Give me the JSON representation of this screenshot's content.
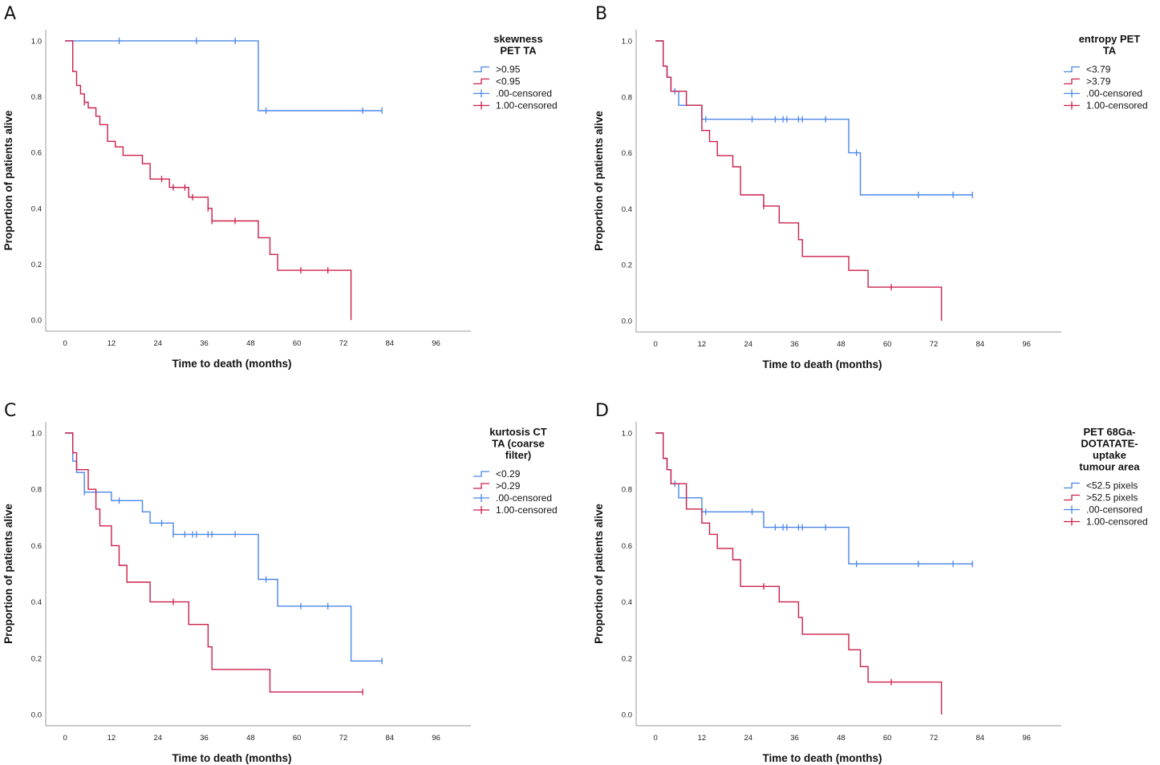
{
  "colors": {
    "group1": "#4a86e8",
    "group2": "#cc1f4a",
    "axis": "#9a9a9a"
  },
  "chart_data": [
    {
      "panel": "A",
      "type": "line",
      "xlabel": "Time to death (months)",
      "ylabel": "Proportion of patients alive",
      "xticks": [
        "0",
        "12",
        "24",
        "36",
        "48",
        "60",
        "72",
        "84",
        "96"
      ],
      "yticks": [
        "0.0",
        "0.2",
        "0.4",
        "0.6",
        "0.8",
        "1.0"
      ],
      "xlim": [
        -5,
        105
      ],
      "ylim": [
        -0.04,
        1.04
      ],
      "legend_title": [
        "skewness",
        "PET TA"
      ],
      "legend_entries": [
        ">0.95",
        "<0.95",
        ".00-censored",
        "1.00-censored"
      ],
      "series": [
        {
          "name": ">0.95",
          "color_key": "group1",
          "x": [
            0,
            50,
            50,
            82
          ],
          "y": [
            1.0,
            1.0,
            0.75,
            0.75
          ],
          "censored": [
            [
              14,
              1.0
            ],
            [
              34,
              1.0
            ],
            [
              44,
              1.0
            ],
            [
              52,
              0.75
            ],
            [
              77,
              0.75
            ],
            [
              82,
              0.75
            ]
          ]
        },
        {
          "name": "<0.95",
          "color_key": "group2",
          "x": [
            0,
            2,
            2,
            3,
            3,
            4,
            4,
            5,
            5,
            6,
            6,
            8,
            8,
            9,
            9,
            11,
            11,
            13,
            13,
            15,
            15,
            16,
            16,
            20,
            20,
            22,
            22,
            27,
            27,
            32,
            32,
            37,
            37,
            38,
            38,
            50,
            50,
            53,
            53,
            55,
            55,
            74,
            74
          ],
          "y": [
            1.0,
            1.0,
            0.89,
            0.89,
            0.84,
            0.84,
            0.81,
            0.81,
            0.78,
            0.78,
            0.76,
            0.76,
            0.73,
            0.73,
            0.7,
            0.7,
            0.64,
            0.64,
            0.62,
            0.62,
            0.59,
            0.59,
            0.59,
            0.59,
            0.56,
            0.56,
            0.505,
            0.505,
            0.475,
            0.475,
            0.44,
            0.44,
            0.4,
            0.4,
            0.355,
            0.355,
            0.295,
            0.295,
            0.235,
            0.235,
            0.178,
            0.178,
            0.0
          ],
          "censored": [
            [
              5,
              0.78
            ],
            [
              25,
              0.505
            ],
            [
              28,
              0.475
            ],
            [
              31,
              0.475
            ],
            [
              33,
              0.44
            ],
            [
              37,
              0.4
            ],
            [
              38,
              0.355
            ],
            [
              44,
              0.355
            ],
            [
              61,
              0.178
            ],
            [
              68,
              0.178
            ]
          ]
        }
      ]
    },
    {
      "panel": "B",
      "type": "line",
      "xlabel": "Time to death (months)",
      "ylabel": "Proportion of patients alive",
      "xticks": [
        "0",
        "12",
        "24",
        "36",
        "48",
        "60",
        "72",
        "84",
        "96"
      ],
      "yticks": [
        "0.0",
        "0.2",
        "0.4",
        "0.6",
        "0.8",
        "1.0"
      ],
      "xlim": [
        -5,
        105
      ],
      "ylim": [
        -0.04,
        1.04
      ],
      "legend_title": [
        "entropy PET",
        "TA"
      ],
      "legend_entries": [
        "<3.79",
        ">3.79",
        ".00-censored",
        "1.00-censored"
      ],
      "series": [
        {
          "name": "<3.79",
          "color_key": "group1",
          "x": [
            0,
            2,
            2,
            3,
            3,
            4,
            4,
            6,
            6,
            12,
            12,
            50,
            50,
            53,
            53,
            82
          ],
          "y": [
            1.0,
            1.0,
            0.91,
            0.91,
            0.87,
            0.87,
            0.82,
            0.82,
            0.77,
            0.77,
            0.72,
            0.72,
            0.6,
            0.6,
            0.45,
            0.45
          ],
          "censored": [
            [
              5,
              0.82
            ],
            [
              13,
              0.72
            ],
            [
              25,
              0.72
            ],
            [
              31,
              0.72
            ],
            [
              33,
              0.72
            ],
            [
              34,
              0.72
            ],
            [
              37,
              0.72
            ],
            [
              38,
              0.72
            ],
            [
              44,
              0.72
            ],
            [
              52,
              0.6
            ],
            [
              68,
              0.45
            ],
            [
              77,
              0.45
            ],
            [
              82,
              0.45
            ]
          ]
        },
        {
          "name": ">3.79",
          "color_key": "group2",
          "x": [
            0,
            2,
            2,
            3,
            3,
            4,
            4,
            8,
            8,
            12,
            12,
            14,
            14,
            16,
            16,
            20,
            20,
            22,
            22,
            28,
            28,
            32,
            32,
            37,
            37,
            38,
            38,
            50,
            50,
            55,
            55,
            74,
            74
          ],
          "y": [
            1.0,
            1.0,
            0.91,
            0.91,
            0.87,
            0.87,
            0.82,
            0.82,
            0.77,
            0.77,
            0.68,
            0.68,
            0.64,
            0.64,
            0.59,
            0.59,
            0.55,
            0.55,
            0.45,
            0.45,
            0.41,
            0.41,
            0.35,
            0.35,
            0.29,
            0.29,
            0.23,
            0.23,
            0.18,
            0.18,
            0.12,
            0.12,
            0.0
          ],
          "censored": [
            [
              28,
              0.41
            ],
            [
              61,
              0.12
            ]
          ]
        }
      ]
    },
    {
      "panel": "C",
      "type": "line",
      "xlabel": "Time to death (months)",
      "ylabel": "Proportion of patients alive",
      "xticks": [
        "0",
        "12",
        "24",
        "36",
        "48",
        "60",
        "72",
        "84",
        "96"
      ],
      "yticks": [
        "0.0",
        "0.2",
        "0.4",
        "0.6",
        "0.8",
        "1.0"
      ],
      "xlim": [
        -5,
        105
      ],
      "ylim": [
        -0.04,
        1.04
      ],
      "legend_title": [
        "kurtosis CT",
        "TA (coarse",
        "filter)"
      ],
      "legend_entries": [
        "<0.29",
        ">0.29",
        ".00-censored",
        "1.00-censored"
      ],
      "series": [
        {
          "name": "<0.29",
          "color_key": "group1",
          "x": [
            0,
            2,
            2,
            3,
            3,
            5,
            5,
            12,
            12,
            20,
            20,
            22,
            22,
            28,
            28,
            50,
            50,
            55,
            55,
            74,
            74,
            82
          ],
          "y": [
            1.0,
            1.0,
            0.9,
            0.9,
            0.86,
            0.86,
            0.79,
            0.79,
            0.76,
            0.76,
            0.72,
            0.72,
            0.68,
            0.68,
            0.64,
            0.64,
            0.48,
            0.48,
            0.385,
            0.385,
            0.19,
            0.19
          ],
          "censored": [
            [
              5,
              0.79
            ],
            [
              14,
              0.76
            ],
            [
              25,
              0.68
            ],
            [
              28,
              0.64
            ],
            [
              31,
              0.64
            ],
            [
              33,
              0.64
            ],
            [
              34,
              0.64
            ],
            [
              37,
              0.64
            ],
            [
              38,
              0.64
            ],
            [
              44,
              0.64
            ],
            [
              52,
              0.48
            ],
            [
              61,
              0.385
            ],
            [
              68,
              0.385
            ],
            [
              82,
              0.19
            ]
          ]
        },
        {
          "name": ">0.29",
          "color_key": "group2",
          "x": [
            0,
            2,
            2,
            3,
            3,
            6,
            6,
            8,
            8,
            9,
            9,
            12,
            12,
            14,
            14,
            16,
            16,
            22,
            22,
            32,
            32,
            37,
            37,
            38,
            38,
            53,
            53,
            77
          ],
          "y": [
            1.0,
            1.0,
            0.93,
            0.93,
            0.87,
            0.87,
            0.8,
            0.8,
            0.73,
            0.73,
            0.67,
            0.67,
            0.6,
            0.6,
            0.53,
            0.53,
            0.47,
            0.47,
            0.4,
            0.4,
            0.32,
            0.32,
            0.24,
            0.24,
            0.16,
            0.16,
            0.08,
            0.08
          ],
          "censored": [
            [
              28,
              0.4
            ],
            [
              77,
              0.08
            ]
          ]
        }
      ]
    },
    {
      "panel": "D",
      "type": "line",
      "xlabel": "Time to death (months)",
      "ylabel": "Proportion of patients alive",
      "xticks": [
        "0",
        "12",
        "24",
        "36",
        "48",
        "60",
        "72",
        "84",
        "96"
      ],
      "yticks": [
        "0.0",
        "0.2",
        "0.4",
        "0.6",
        "0.8",
        "1.0"
      ],
      "xlim": [
        -5,
        105
      ],
      "ylim": [
        -0.04,
        1.04
      ],
      "legend_title": [
        "PET 68Ga-",
        "DOTATATE-",
        "uptake",
        "tumour area"
      ],
      "legend_entries": [
        "<52.5 pixels",
        ">52.5 pixels",
        ".00-censored",
        "1.00-censored"
      ],
      "series": [
        {
          "name": "<52.5 pixels",
          "color_key": "group1",
          "x": [
            0,
            2,
            2,
            3,
            3,
            4,
            4,
            6,
            6,
            12,
            12,
            28,
            28,
            50,
            50,
            82
          ],
          "y": [
            1.0,
            1.0,
            0.91,
            0.91,
            0.87,
            0.87,
            0.82,
            0.82,
            0.77,
            0.77,
            0.72,
            0.72,
            0.665,
            0.665,
            0.535,
            0.535
          ],
          "censored": [
            [
              5,
              0.82
            ],
            [
              13,
              0.72
            ],
            [
              25,
              0.72
            ],
            [
              31,
              0.665
            ],
            [
              33,
              0.665
            ],
            [
              34,
              0.665
            ],
            [
              37,
              0.665
            ],
            [
              38,
              0.665
            ],
            [
              44,
              0.665
            ],
            [
              52,
              0.535
            ],
            [
              68,
              0.535
            ],
            [
              77,
              0.535
            ],
            [
              82,
              0.535
            ]
          ]
        },
        {
          "name": ">52.5 pixels",
          "color_key": "group2",
          "x": [
            0,
            2,
            2,
            3,
            3,
            4,
            4,
            8,
            8,
            12,
            12,
            14,
            14,
            16,
            16,
            20,
            20,
            22,
            22,
            32,
            32,
            37,
            37,
            38,
            38,
            50,
            50,
            53,
            53,
            55,
            55,
            74,
            74
          ],
          "y": [
            1.0,
            1.0,
            0.91,
            0.91,
            0.87,
            0.87,
            0.82,
            0.82,
            0.73,
            0.73,
            0.68,
            0.68,
            0.64,
            0.64,
            0.59,
            0.59,
            0.55,
            0.55,
            0.455,
            0.455,
            0.4,
            0.4,
            0.345,
            0.345,
            0.285,
            0.285,
            0.23,
            0.23,
            0.17,
            0.17,
            0.115,
            0.115,
            0.0
          ],
          "censored": [
            [
              28,
              0.455
            ],
            [
              61,
              0.115
            ]
          ]
        }
      ]
    }
  ]
}
